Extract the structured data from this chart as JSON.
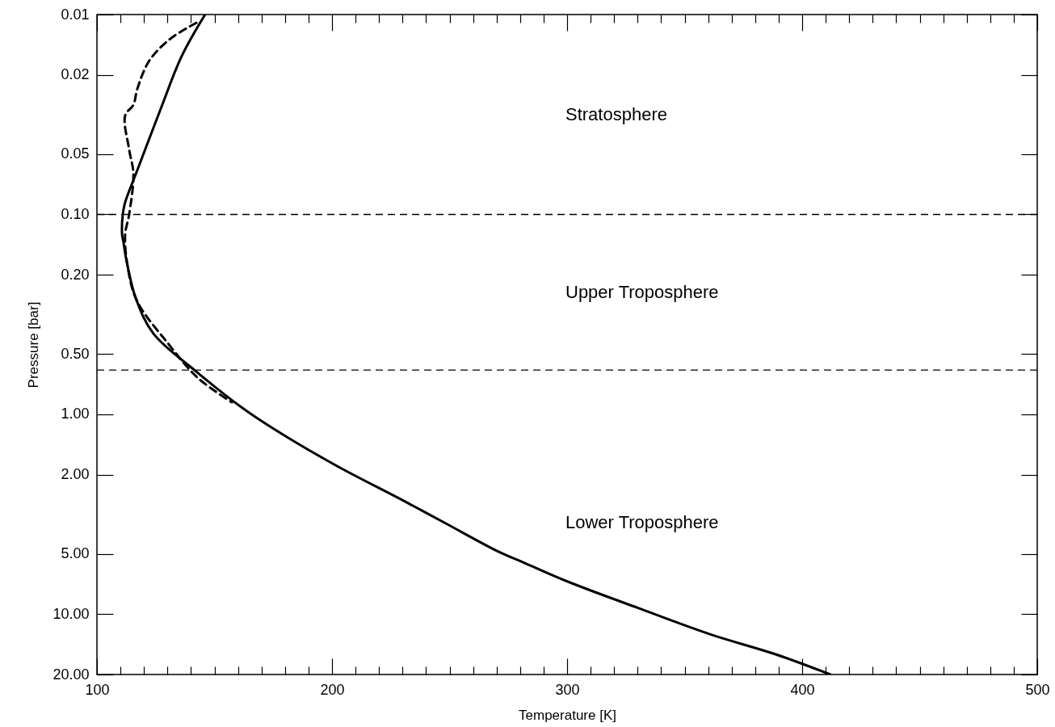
{
  "chart_data": {
    "type": "line",
    "xlabel": "Temperature [K]",
    "ylabel": "Pressure [bar]",
    "log": "y",
    "xlim": [
      100,
      500
    ],
    "xticks": [
      100,
      {
        "value": 110,
        "label": null
      },
      {
        "value": 120,
        "label": null
      },
      {
        "value": 130,
        "label": null
      },
      {
        "value": 140,
        "label": null
      },
      {
        "value": 150,
        "label": null
      },
      {
        "value": 160,
        "label": null
      },
      {
        "value": 170,
        "label": null
      },
      {
        "value": 180,
        "label": null
      },
      {
        "value": 190,
        "label": null
      },
      200,
      {
        "value": 210,
        "label": null
      },
      {
        "value": 220,
        "label": null
      },
      {
        "value": 230,
        "label": null
      },
      {
        "value": 240,
        "label": null
      },
      {
        "value": 250,
        "label": null
      },
      {
        "value": 260,
        "label": null
      },
      {
        "value": 270,
        "label": null
      },
      {
        "value": 280,
        "label": null
      },
      {
        "value": 290,
        "label": null
      },
      300,
      {
        "value": 310,
        "label": null
      },
      {
        "value": 320,
        "label": null
      },
      {
        "value": 330,
        "label": null
      },
      {
        "value": 340,
        "label": null
      },
      {
        "value": 350,
        "label": null
      },
      {
        "value": 360,
        "label": null
      },
      {
        "value": 370,
        "label": null
      },
      {
        "value": 380,
        "label": null
      },
      {
        "value": 390,
        "label": null
      },
      400,
      {
        "value": 410,
        "label": null
      },
      {
        "value": 420,
        "label": null
      },
      {
        "value": 430,
        "label": null
      },
      {
        "value": 440,
        "label": null
      },
      {
        "value": 450,
        "label": null
      },
      {
        "value": 460,
        "label": null
      },
      {
        "value": 470,
        "label": null
      },
      {
        "value": 480,
        "label": null
      },
      {
        "value": 490,
        "label": null
      },
      500
    ],
    "ylim": [
      20,
      0.01
    ],
    "yticks": [
      {
        "value": 0.01,
        "label": "0.01"
      },
      {
        "value": 0.02,
        "label": "0.02"
      },
      {
        "value": 0.05,
        "label": "0.05"
      },
      {
        "value": 0.1,
        "label": "0.10"
      },
      {
        "value": 0.2,
        "label": "0.20"
      },
      {
        "value": 0.5,
        "label": "0.50"
      },
      {
        "value": 1,
        "label": "1.00"
      },
      {
        "value": 2,
        "label": "2.00"
      },
      {
        "value": 5,
        "label": "5.00"
      },
      {
        "value": 10,
        "label": "10.00"
      },
      {
        "value": 20,
        "label": "20.00"
      }
    ],
    "grid": false,
    "marker": "none",
    "series": [
      {
        "color": "#000000",
        "line_style": "solid",
        "x": [
          146,
          136,
          127.1,
          117.2,
          112,
          111,
          110.7,
          111.3,
          112.4,
          116.6,
          124,
          142.3,
          161.9,
          179,
          202,
          230.6,
          247.8,
          270.8,
          282,
          300.3,
          330.2,
          361,
          388.7,
          412
        ],
        "values": [
          0.01,
          0.0162,
          0.0297,
          0.06,
          0.087,
          0.1,
          0.126,
          0.138,
          0.166,
          0.264,
          0.394,
          0.611,
          0.929,
          1.26,
          1.81,
          2.71,
          3.48,
          4.86,
          5.54,
          6.86,
          9.3,
          12.6,
          15.85,
          20
        ]
      },
      {
        "color": "#000000",
        "line_style": "dashed",
        "x": [
          142.3,
          131.3,
          122.3,
          117.2,
          115.5,
          112,
          113.7,
          115.5,
          113.7,
          112,
          113,
          117,
          130.2,
          143,
          157.4
        ],
        "values": [
          0.011,
          0.0132,
          0.017,
          0.0235,
          0.0283,
          0.032,
          0.0473,
          0.0625,
          0.1,
          0.126,
          0.18,
          0.27,
          0.441,
          0.658,
          0.87
        ]
      }
    ],
    "ref_lines": [
      {
        "axis": "y",
        "value": 0.1,
        "line_style": "dashed",
        "color": "#000000"
      },
      {
        "axis": "y",
        "value": 0.6,
        "line_style": "dashed",
        "color": "#000000"
      }
    ],
    "annotations": [
      "Stratosphere",
      "Upper Troposphere",
      "Lower Troposphere"
    ]
  }
}
